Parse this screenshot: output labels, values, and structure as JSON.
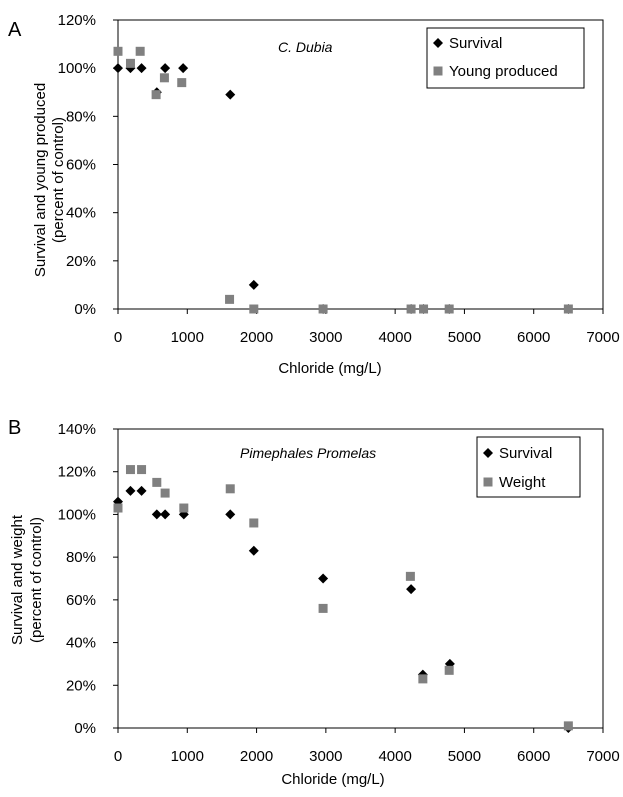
{
  "chart_data": [
    {
      "type": "scatter",
      "panel_label": "A",
      "annotation": "C. Dubia",
      "xlabel": "Chloride (mg/L)",
      "ylabel": [
        "Survival and young produced",
        "(percent of control)"
      ],
      "xlim": [
        0,
        7000
      ],
      "ylim": [
        0,
        120
      ],
      "xticks": [
        0,
        1000,
        2000,
        3000,
        4000,
        5000,
        6000,
        7000
      ],
      "yticks": [
        0,
        20,
        40,
        60,
        80,
        100,
        120
      ],
      "xtick_labels": [
        "0",
        "1000",
        "2000",
        "3000",
        "4000",
        "5000",
        "6000",
        "7000"
      ],
      "ytick_labels": [
        "0%",
        "20%",
        "40%",
        "60%",
        "80%",
        "100%",
        "120%"
      ],
      "legend_position": "top-right",
      "grid": false,
      "series": [
        {
          "name": "Survival",
          "marker": "diamond",
          "color": "#000000",
          "points": [
            [
              0,
              100
            ],
            [
              180,
              100
            ],
            [
              340,
              100
            ],
            [
              560,
              90
            ],
            [
              680,
              100
            ],
            [
              940,
              100
            ],
            [
              1620,
              89
            ],
            [
              1960,
              10
            ],
            [
              2960,
              0
            ],
            [
              4230,
              0
            ],
            [
              4410,
              0
            ],
            [
              4780,
              0
            ],
            [
              6500,
              0
            ]
          ]
        },
        {
          "name": "Young produced",
          "marker": "square",
          "color": "#808080",
          "points": [
            [
              0,
              107
            ],
            [
              180,
              102
            ],
            [
              320,
              107
            ],
            [
              550,
              89
            ],
            [
              670,
              96
            ],
            [
              920,
              94
            ],
            [
              1610,
              4
            ],
            [
              1960,
              0
            ],
            [
              2960,
              0
            ],
            [
              4230,
              0
            ],
            [
              4410,
              0
            ],
            [
              4780,
              0
            ],
            [
              6500,
              0
            ]
          ]
        }
      ]
    },
    {
      "type": "scatter",
      "panel_label": "B",
      "annotation": "Pimephales Promelas",
      "xlabel": "Chloride (mg/L)",
      "ylabel": [
        "Survival and weight",
        "(percent of control)"
      ],
      "xlim": [
        0,
        7000
      ],
      "ylim": [
        0,
        140
      ],
      "xticks": [
        0,
        1000,
        2000,
        3000,
        4000,
        5000,
        6000,
        7000
      ],
      "yticks": [
        0,
        20,
        40,
        60,
        80,
        100,
        120,
        140
      ],
      "xtick_labels": [
        "0",
        "1000",
        "2000",
        "3000",
        "4000",
        "5000",
        "6000",
        "7000"
      ],
      "ytick_labels": [
        "0%",
        "20%",
        "40%",
        "60%",
        "80%",
        "100%",
        "120%",
        "140%"
      ],
      "legend_position": "top-right",
      "grid": false,
      "series": [
        {
          "name": "Survival",
          "marker": "diamond",
          "color": "#000000",
          "points": [
            [
              0,
              106
            ],
            [
              180,
              111
            ],
            [
              340,
              111
            ],
            [
              560,
              100
            ],
            [
              680,
              100
            ],
            [
              950,
              100
            ],
            [
              1620,
              100
            ],
            [
              1960,
              83
            ],
            [
              2960,
              70
            ],
            [
              4230,
              65
            ],
            [
              4400,
              25
            ],
            [
              4790,
              30
            ],
            [
              6500,
              0
            ]
          ]
        },
        {
          "name": "Weight",
          "marker": "square",
          "color": "#808080",
          "points": [
            [
              0,
              103
            ],
            [
              180,
              121
            ],
            [
              340,
              121
            ],
            [
              560,
              115
            ],
            [
              680,
              110
            ],
            [
              950,
              103
            ],
            [
              1620,
              112
            ],
            [
              1960,
              96
            ],
            [
              2960,
              56
            ],
            [
              4220,
              71
            ],
            [
              4400,
              23
            ],
            [
              4780,
              27
            ],
            [
              6500,
              1
            ]
          ]
        }
      ]
    }
  ]
}
